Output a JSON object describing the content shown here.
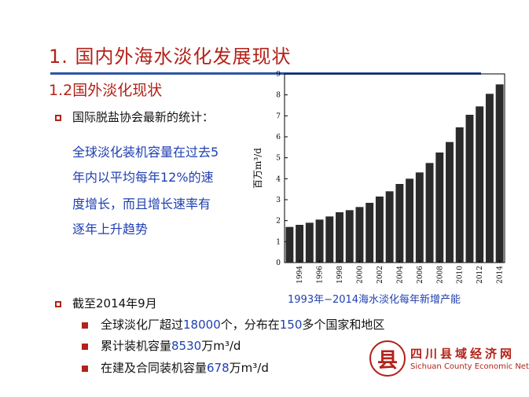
{
  "slide": {
    "title": "1. 国内外海水淡化发展现状",
    "subtitle": "1.2国外淡化现状",
    "bullet1": "国际脱盐协会最新的统计：",
    "desc_lines": [
      "全球淡化装机容量在过去5",
      "年内以平均每年12%的速",
      "度增长，而且增长速率有",
      "逐年上升趋势"
    ],
    "bullet2": "截至2014年9月",
    "sub_items": [
      {
        "pre": "全球淡化厂超过",
        "hl1": "18000",
        "mid": "个，分布在",
        "hl2": "150",
        "post": "多个国家和地区"
      },
      {
        "pre": "累计装机容量",
        "hl1": "8530",
        "mid": "万m³/d",
        "hl2": "",
        "post": ""
      },
      {
        "pre": "在建及合同装机容量",
        "hl1": "678",
        "mid": "万m³/d",
        "hl2": "",
        "post": ""
      }
    ],
    "caption": "1993年−2014海水淡化每年新增产能"
  },
  "logo": {
    "glyph": "县",
    "name_cn": "四川县域经济网",
    "name_en": "Sichuan County Economic Net"
  },
  "chart_data": {
    "type": "bar",
    "title": "",
    "xlabel": "",
    "ylabel": "百万m³/d",
    "categories": [
      "1993",
      "1994",
      "1995",
      "1996",
      "1997",
      "1998",
      "1999",
      "2000",
      "2001",
      "2002",
      "2003",
      "2004",
      "2005",
      "2006",
      "2007",
      "2008",
      "2009",
      "2010",
      "2011",
      "2012",
      "2013",
      "2014"
    ],
    "x_tick_labels": [
      "1994",
      "1996",
      "1998",
      "2000",
      "2002",
      "2004",
      "2006",
      "2008",
      "2010",
      "2012",
      "2014"
    ],
    "values": [
      1.7,
      1.8,
      1.9,
      2.05,
      2.2,
      2.4,
      2.5,
      2.65,
      2.85,
      3.15,
      3.4,
      3.75,
      4.0,
      4.3,
      4.75,
      5.25,
      5.75,
      6.45,
      7.05,
      7.45,
      8.05,
      8.5
    ],
    "ylim": [
      0,
      9
    ],
    "yticks": [
      0,
      1,
      2,
      3,
      4,
      5,
      6,
      7,
      8,
      9
    ],
    "bar_color": "#2b2b2b",
    "grid": false
  }
}
